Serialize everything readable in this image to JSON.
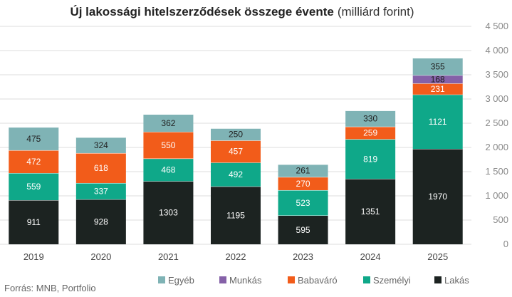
{
  "chart_data": {
    "type": "bar",
    "stacked": true,
    "title": "Új lakossági hitelszerződések összege évente",
    "title_unit": "(milliárd forint)",
    "categories": [
      "2019",
      "2020",
      "2021",
      "2022",
      "2023",
      "2024",
      "2025"
    ],
    "series": [
      {
        "name": "Lakás",
        "color": "#1c2321",
        "label_color": "#ffffff",
        "values": [
          911,
          928,
          1303,
          1195,
          595,
          1351,
          1970
        ]
      },
      {
        "name": "Személyi",
        "color": "#0fa889",
        "label_color": "#ffffff",
        "values": [
          559,
          337,
          468,
          492,
          523,
          819,
          1121
        ]
      },
      {
        "name": "Babaváró",
        "color": "#f25c1a",
        "label_color": "#ffffff",
        "values": [
          472,
          618,
          550,
          457,
          270,
          259,
          231
        ]
      },
      {
        "name": "Munkás",
        "color": "#8561a8",
        "label_color": "#222222",
        "values": [
          0,
          0,
          0,
          0,
          0,
          0,
          168
        ]
      },
      {
        "name": "Egyéb",
        "color": "#7fb3b5",
        "label_color": "#222222",
        "values": [
          475,
          324,
          362,
          250,
          261,
          330,
          355
        ]
      }
    ],
    "legend_order": [
      "Egyéb",
      "Munkás",
      "Babaváró",
      "Személyi",
      "Lakás"
    ],
    "ylim": [
      0,
      4500
    ],
    "yticks": [
      0,
      500,
      1000,
      1500,
      2000,
      2500,
      3000,
      3500,
      4000,
      4500
    ],
    "ytick_labels": [
      "0",
      "500",
      "1 000",
      "1 500",
      "2 000",
      "2 500",
      "3 000",
      "3 500",
      "4 000",
      "4 500"
    ],
    "yaxis_side": "right",
    "grid": true,
    "legend_position": "bottom-right",
    "source": "Forrás: MNB, Portfolio"
  }
}
